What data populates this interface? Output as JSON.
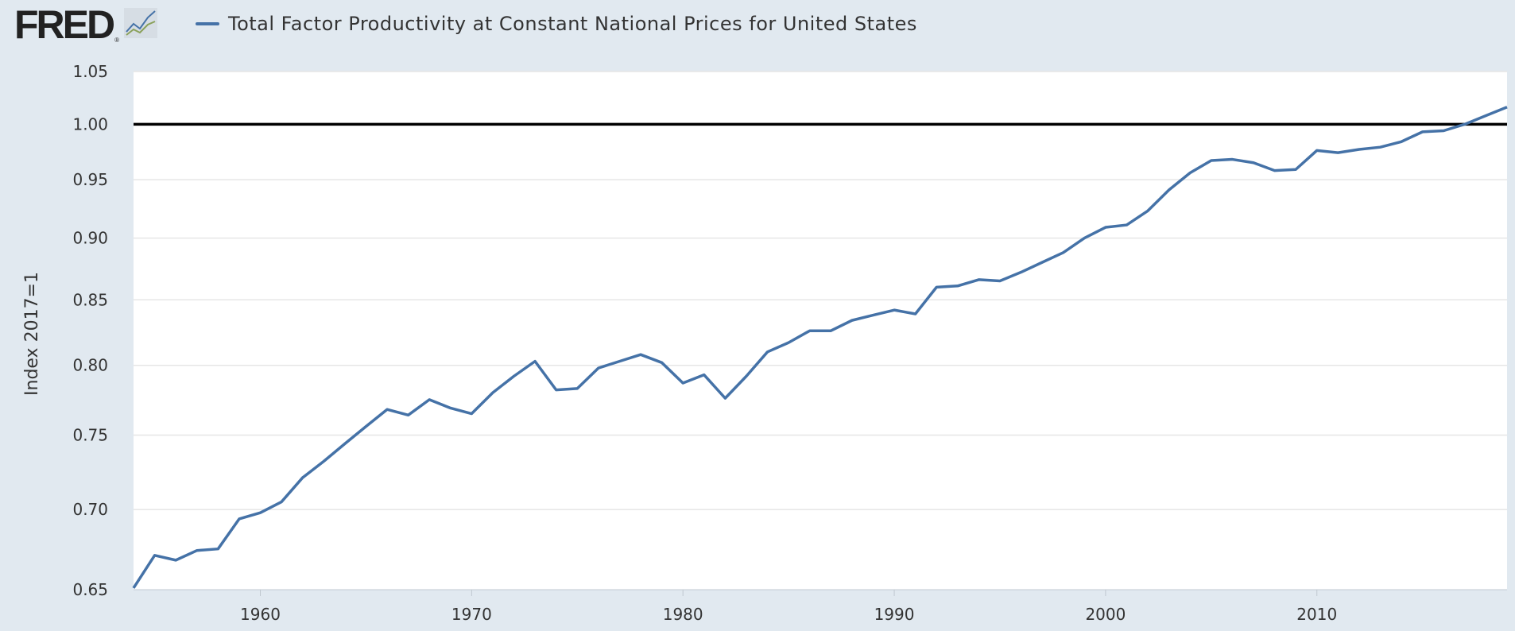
{
  "header": {
    "logo_text": "FRED",
    "logo_mark": "®",
    "logo_icon": "line-chart-icon"
  },
  "chart_data": {
    "type": "line",
    "series": [
      {
        "name": "Total Factor Productivity at Constant National Prices for United States",
        "color": "#4572a7",
        "points": [
          [
            1954,
            0.651
          ],
          [
            1955,
            0.671
          ],
          [
            1956,
            0.668
          ],
          [
            1957,
            0.674
          ],
          [
            1958,
            0.675
          ],
          [
            1959,
            0.694
          ],
          [
            1960,
            0.698
          ],
          [
            1961,
            0.705
          ],
          [
            1962,
            0.721
          ],
          [
            1963,
            0.732
          ],
          [
            1964,
            0.744
          ],
          [
            1965,
            0.756
          ],
          [
            1966,
            0.768
          ],
          [
            1967,
            0.764
          ],
          [
            1968,
            0.775
          ],
          [
            1969,
            0.769
          ],
          [
            1970,
            0.765
          ],
          [
            1971,
            0.78
          ],
          [
            1972,
            0.792
          ],
          [
            1973,
            0.803
          ],
          [
            1974,
            0.782
          ],
          [
            1975,
            0.783
          ],
          [
            1976,
            0.798
          ],
          [
            1977,
            0.803
          ],
          [
            1978,
            0.808
          ],
          [
            1979,
            0.802
          ],
          [
            1980,
            0.787
          ],
          [
            1981,
            0.793
          ],
          [
            1982,
            0.776
          ],
          [
            1983,
            0.792
          ],
          [
            1984,
            0.81
          ],
          [
            1985,
            0.817
          ],
          [
            1986,
            0.826
          ],
          [
            1987,
            0.826
          ],
          [
            1988,
            0.834
          ],
          [
            1989,
            0.838
          ],
          [
            1990,
            0.842
          ],
          [
            1991,
            0.839
          ],
          [
            1992,
            0.86
          ],
          [
            1993,
            0.861
          ],
          [
            1994,
            0.866
          ],
          [
            1995,
            0.865
          ],
          [
            1996,
            0.872
          ],
          [
            1997,
            0.88
          ],
          [
            1998,
            0.888
          ],
          [
            1999,
            0.9
          ],
          [
            2000,
            0.909
          ],
          [
            2001,
            0.911
          ],
          [
            2002,
            0.923
          ],
          [
            2003,
            0.941
          ],
          [
            2004,
            0.956
          ],
          [
            2005,
            0.967
          ],
          [
            2006,
            0.968
          ],
          [
            2007,
            0.965
          ],
          [
            2008,
            0.958
          ],
          [
            2009,
            0.959
          ],
          [
            2010,
            0.976
          ],
          [
            2011,
            0.974
          ],
          [
            2012,
            0.977
          ],
          [
            2013,
            0.979
          ],
          [
            2014,
            0.984
          ],
          [
            2015,
            0.993
          ],
          [
            2016,
            0.994
          ],
          [
            2017,
            1.0
          ],
          [
            2018,
            1.008
          ],
          [
            2019,
            1.016
          ]
        ]
      }
    ],
    "reference_line": {
      "y": 1.0,
      "color": "#000000"
    },
    "xlim": [
      1954,
      2019
    ],
    "ylim": [
      0.65,
      1.05
    ],
    "y_scale": "log",
    "x_ticks": [
      "1960",
      "1970",
      "1980",
      "1990",
      "2000",
      "2010"
    ],
    "y_ticks": [
      "0.65",
      "0.70",
      "0.75",
      "0.80",
      "0.85",
      "0.90",
      "0.95",
      "1.00",
      "1.05"
    ],
    "ylabel": "Index 2017=1",
    "xlabel": "",
    "grid": "horizontal",
    "legend_position": "top-left"
  }
}
